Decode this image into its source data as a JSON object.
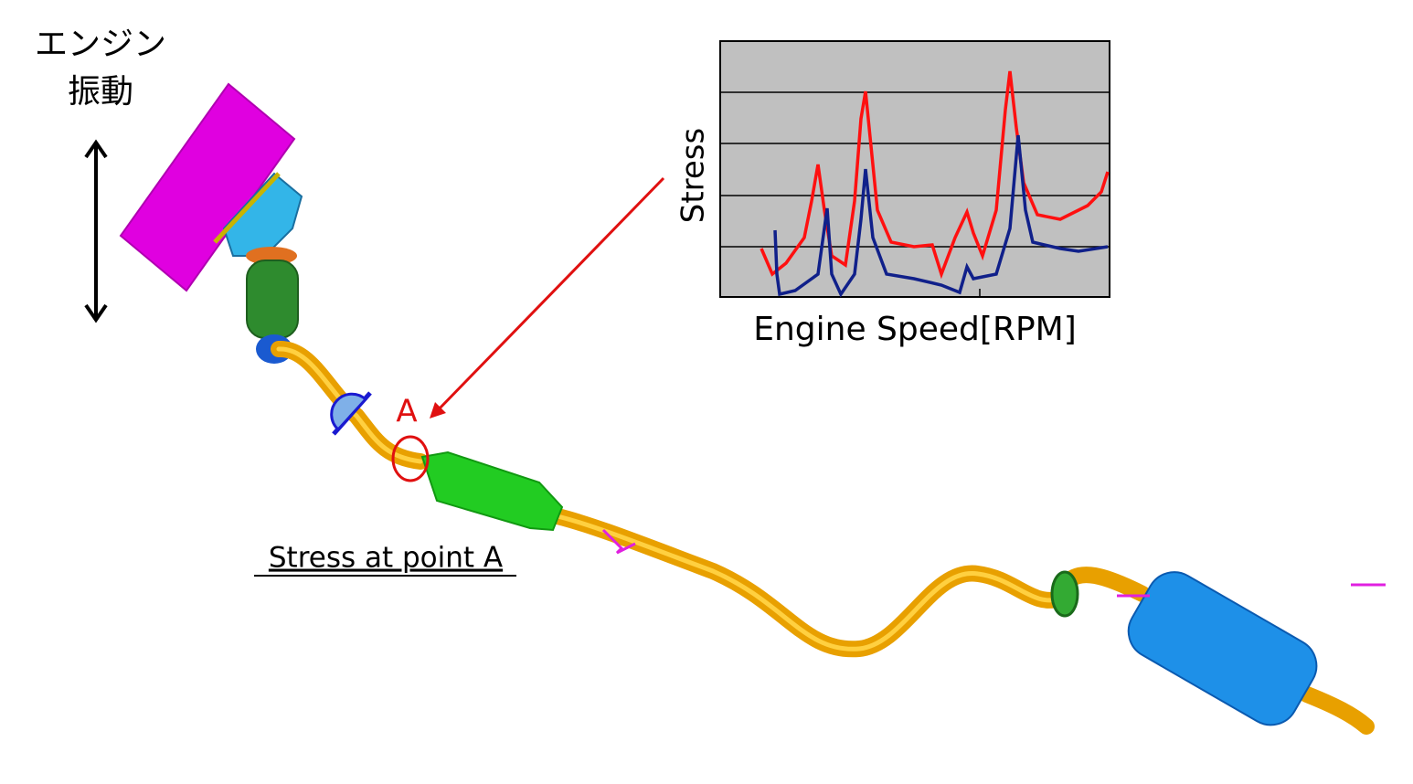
{
  "labels": {
    "engine_vibration": [
      "エンジン",
      "振動"
    ],
    "point": "A",
    "caption": "Stress at point A"
  },
  "graph": {
    "y_label": "Stress",
    "x_label": "Engine Speed[RPM]"
  }
}
